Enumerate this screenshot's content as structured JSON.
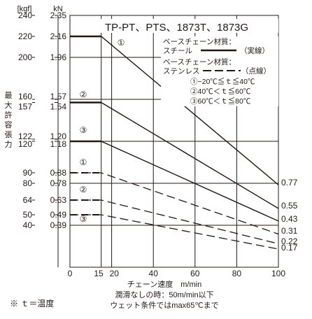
{
  "chart_data": {
    "type": "line",
    "title": "TP-PT、PTS、1873T、1873G",
    "xlabel": "チェーン速度　m/min",
    "ylabel": "最大許容張力",
    "unit_kgf": "[kgf]",
    "unit_kn": "kN",
    "xlim": [
      0,
      100
    ],
    "ylim_kgf": [
      0,
      240
    ],
    "x_ticks": [
      {
        "value": 0,
        "label": "0"
      },
      {
        "value": 15,
        "label": "15"
      },
      {
        "value": 20,
        "label": "20"
      },
      {
        "value": 40,
        "label": "40"
      },
      {
        "value": 60,
        "label": "60"
      },
      {
        "value": 80,
        "label": "80"
      },
      {
        "value": 100,
        "label": "100"
      }
    ],
    "y_ticks": [
      {
        "kgf": 240,
        "kgf_label": "240",
        "kn_label": "2.35"
      },
      {
        "kgf": 220,
        "kgf_label": "220",
        "kn_label": "2.16"
      },
      {
        "kgf": 200,
        "kgf_label": "200",
        "kn_label": "1.96"
      },
      {
        "kgf": 160,
        "kgf_label": "160",
        "kn_label": "1.57"
      },
      {
        "kgf": 157,
        "kgf_label": "157",
        "kn_label": "1.54"
      },
      {
        "kgf": 122,
        "kgf_label": "122",
        "kn_label": "1.20"
      },
      {
        "kgf": 120,
        "kgf_label": "120",
        "kn_label": "1.18"
      },
      {
        "kgf": 90,
        "kgf_label": "90",
        "kn_label": "0.88"
      },
      {
        "kgf": 80,
        "kgf_label": "80",
        "kn_label": "0.78"
      },
      {
        "kgf": 64,
        "kgf_label": "64",
        "kn_label": "0.63"
      },
      {
        "kgf": 50,
        "kgf_label": "50",
        "kn_label": "0.49"
      },
      {
        "kgf": 40,
        "kgf_label": "40",
        "kn_label": "0.39"
      }
    ],
    "series": [
      {
        "marker": "①",
        "material": "steel",
        "style": "solid",
        "x": [
          0,
          15,
          100
        ],
        "y_kgf": [
          220,
          220,
          78.5
        ],
        "end_label": "0.77"
      },
      {
        "marker": "②",
        "material": "steel",
        "style": "solid",
        "x": [
          0,
          15,
          100
        ],
        "y_kgf": [
          157,
          157,
          56
        ],
        "end_label": "0.55"
      },
      {
        "marker": "③",
        "material": "steel",
        "style": "solid",
        "x": [
          0,
          15,
          100
        ],
        "y_kgf": [
          120,
          120,
          44
        ],
        "end_label": "0.43"
      },
      {
        "marker": "①",
        "material": "stainless",
        "style": "dashed",
        "x": [
          0,
          15,
          100
        ],
        "y_kgf": [
          90,
          90,
          31.6
        ],
        "end_label": "0.31"
      },
      {
        "marker": "②",
        "material": "stainless",
        "style": "dashed",
        "x": [
          0,
          15,
          100
        ],
        "y_kgf": [
          64,
          64,
          22.4
        ],
        "end_label": "0.22"
      },
      {
        "marker": "③",
        "material": "stainless",
        "style": "dashed",
        "x": [
          0,
          15,
          100
        ],
        "y_kgf": [
          50,
          50,
          17.3
        ],
        "end_label": "0.17"
      }
    ],
    "legend": {
      "steel_heading": "ベースチェーン材質：",
      "steel_label": "スチール",
      "steel_note": "（実線）",
      "stainless_heading": "ベースチェーン材質：",
      "stainless_label": "ステンレス",
      "stainless_note": "（点線）",
      "temps": [
        "①−20℃≦ｔ≦40℃",
        "②40℃＜ｔ≦60℃",
        "③60℃＜ｔ≦80℃"
      ]
    },
    "notes": [
      "潤滑なしの時：50m/min以下",
      "ウェット条件ではmax65℃まで"
    ],
    "footnote": "※ ｔ＝温度",
    "colors": {
      "line": "#231815",
      "grid": "#231815",
      "background": "#ffffff"
    }
  }
}
